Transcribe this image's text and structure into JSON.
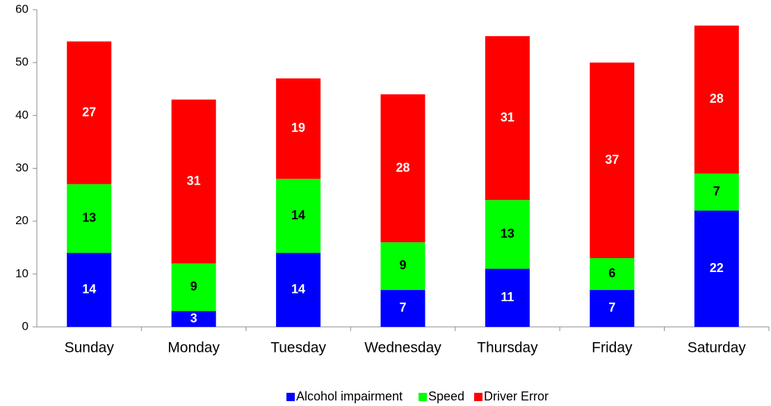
{
  "chart_data": {
    "type": "stacked_bar",
    "categories": [
      "Sunday",
      "Monday",
      "Tuesday",
      "Wednesday",
      "Thursday",
      "Friday",
      "Saturday"
    ],
    "series": [
      {
        "name": "Alcohol impairment",
        "color": "#0000ff",
        "label_color": "#ffffff",
        "values": [
          14,
          3,
          14,
          7,
          11,
          7,
          22
        ]
      },
      {
        "name": "Speed",
        "color": "#00ff00",
        "label_color": "#000000",
        "values": [
          13,
          9,
          14,
          9,
          13,
          6,
          7
        ]
      },
      {
        "name": "Driver Error",
        "color": "#ff0000",
        "label_color": "#ffffff",
        "values": [
          27,
          31,
          19,
          28,
          31,
          37,
          28
        ]
      }
    ],
    "ylim": [
      0,
      60
    ],
    "yticks": [
      0,
      10,
      20,
      30,
      40,
      50,
      60
    ],
    "grid": false,
    "legend": "bottom"
  }
}
